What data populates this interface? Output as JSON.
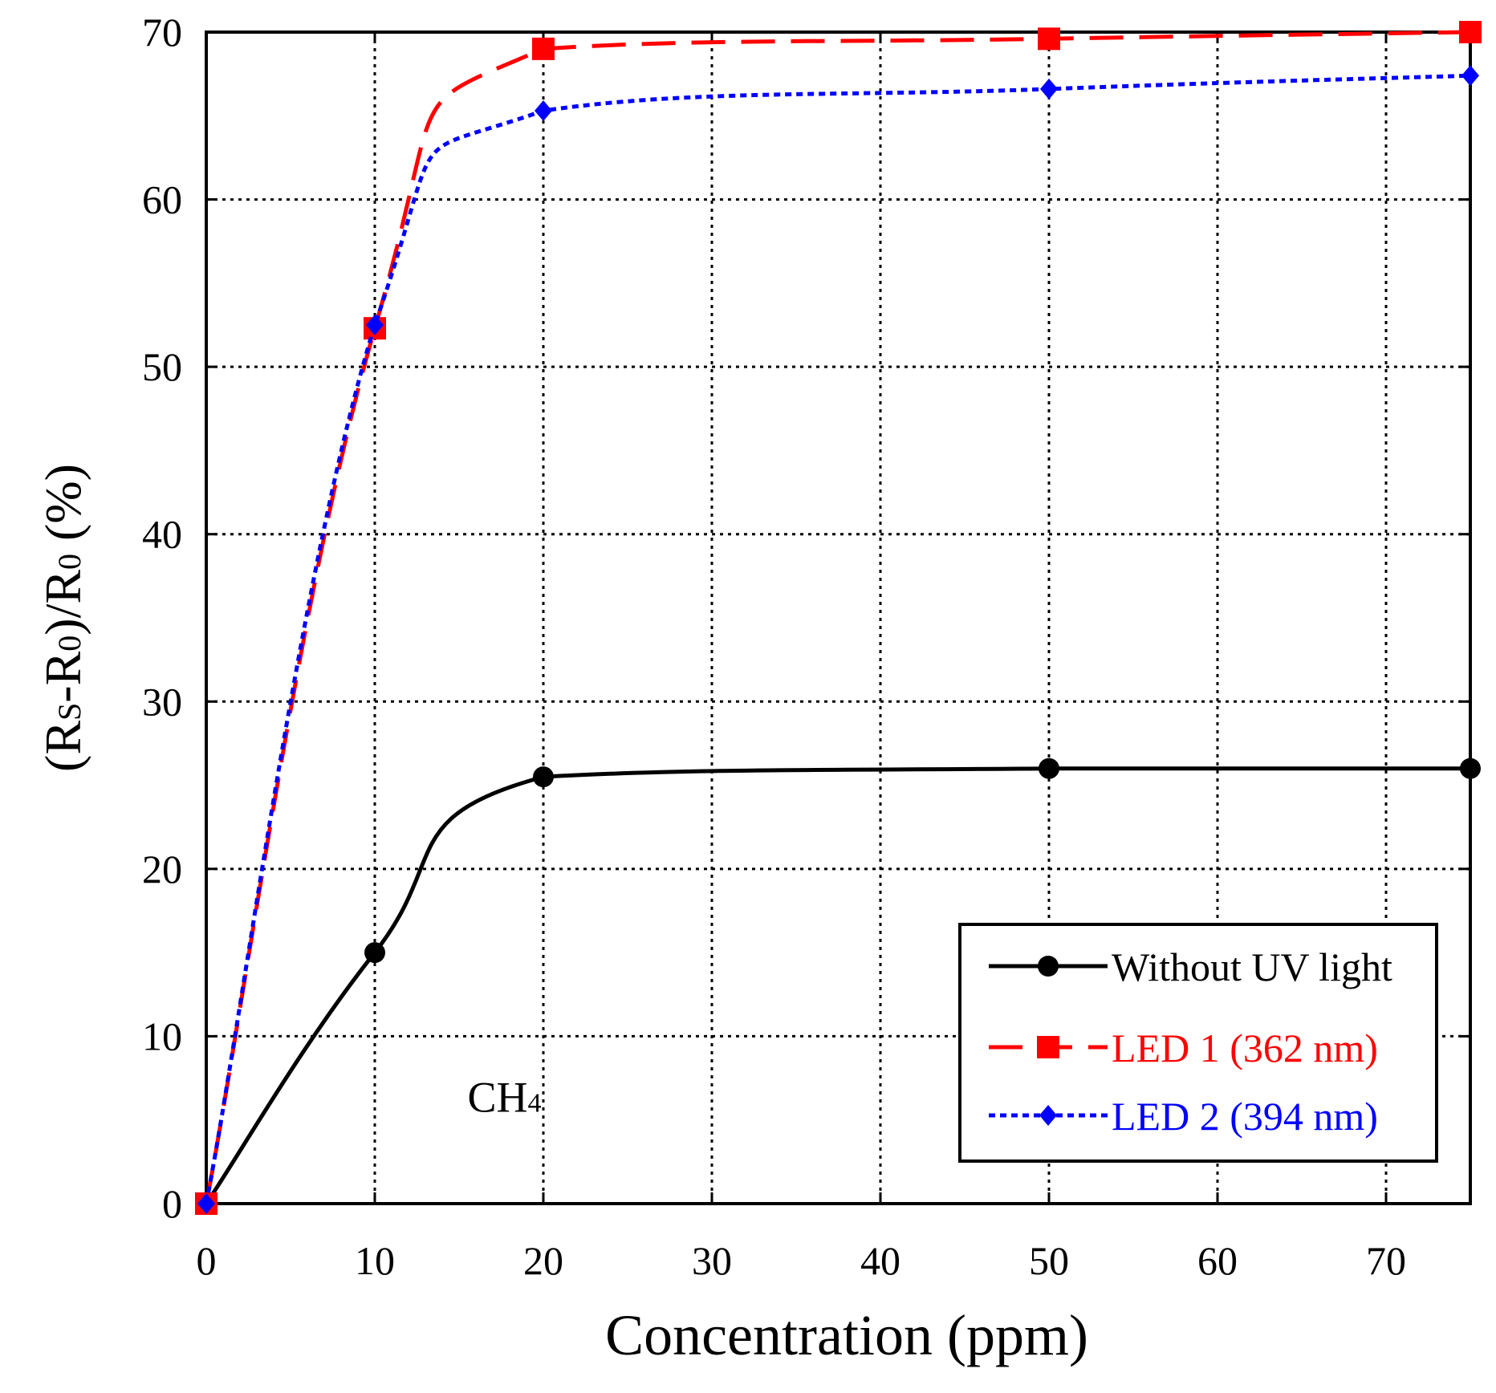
{
  "chart_data": {
    "type": "line",
    "title": "",
    "xlabel": "Concentration (ppm)",
    "ylabel": {
      "p1": "(R",
      "s1": "S",
      "p2": "-R",
      "s2": "0",
      "p3": ")/R",
      "s3": "0",
      "p4": " (%)"
    },
    "xlim": [
      0,
      75
    ],
    "ylim": [
      0,
      70
    ],
    "xticks": [
      0,
      10,
      20,
      30,
      40,
      50,
      60,
      70
    ],
    "yticks": [
      0,
      10,
      20,
      30,
      40,
      50,
      60,
      70
    ],
    "grid": true,
    "annotation": {
      "main": "CH",
      "sub": "4",
      "x": 15.5,
      "y": 5.5
    },
    "legend": {
      "position": "bottom-right"
    },
    "series": [
      {
        "name": "Without UV light",
        "color": "#000000",
        "marker": "circle",
        "line": "solid",
        "x": [
          0,
          10,
          20,
          50,
          75
        ],
        "values": [
          0,
          15,
          25.5,
          26,
          26
        ]
      },
      {
        "name": "LED 1 (362 nm)",
        "color": "#ff0000",
        "marker": "square",
        "line": "dashed",
        "x": [
          0,
          10,
          20,
          50,
          75
        ],
        "values": [
          0,
          52.3,
          69,
          69.6,
          70
        ]
      },
      {
        "name": "LED 2 (394 nm)",
        "color": "#0000ff",
        "marker": "diamond",
        "line": "dotted",
        "x": [
          0,
          10,
          20,
          50,
          75
        ],
        "values": [
          0,
          52.5,
          65.3,
          66.6,
          67.4
        ]
      }
    ]
  }
}
